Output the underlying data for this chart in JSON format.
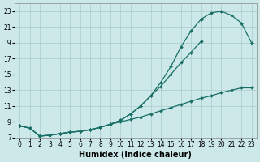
{
  "xlabel": "Humidex (Indice chaleur)",
  "bg_color": "#cce8e8",
  "grid_color": "#aacccc",
  "line_color": "#1a7068",
  "x_values": [
    0,
    1,
    2,
    3,
    4,
    5,
    6,
    7,
    8,
    9,
    10,
    11,
    12,
    13,
    14,
    15,
    16,
    17,
    18,
    19,
    20,
    21,
    22,
    23
  ],
  "line1_y": [
    8.5,
    8.2,
    7.2,
    7.3,
    7.5,
    7.7,
    7.8,
    8.0,
    8.3,
    8.7,
    9.2,
    10.0,
    11.0,
    12.3,
    14.0,
    16.0,
    18.5,
    20.5,
    22.0,
    22.8,
    23.0,
    22.5,
    21.5,
    19.0
  ],
  "line2_y": [
    8.5,
    8.2,
    7.2,
    7.3,
    7.5,
    7.7,
    7.8,
    8.0,
    8.3,
    8.7,
    9.2,
    10.0,
    11.0,
    12.3,
    13.5,
    15.0,
    16.5,
    17.8,
    19.2,
    null,
    null,
    null,
    null,
    null
  ],
  "line3_y": [
    8.5,
    8.2,
    7.2,
    7.3,
    7.5,
    7.7,
    7.8,
    8.0,
    8.3,
    8.7,
    9.0,
    9.3,
    9.6,
    10.0,
    10.4,
    10.8,
    11.2,
    11.6,
    12.0,
    12.3,
    12.7,
    13.0,
    13.3,
    13.3
  ],
  "ylim": [
    7,
    24
  ],
  "xlim": [
    -0.5,
    23.5
  ],
  "yticks": [
    7,
    9,
    11,
    13,
    15,
    17,
    19,
    21,
    23
  ],
  "xticks": [
    0,
    1,
    2,
    3,
    4,
    5,
    6,
    7,
    8,
    9,
    10,
    11,
    12,
    13,
    14,
    15,
    16,
    17,
    18,
    19,
    20,
    21,
    22,
    23
  ],
  "tick_fontsize": 5.5,
  "xlabel_fontsize": 7
}
